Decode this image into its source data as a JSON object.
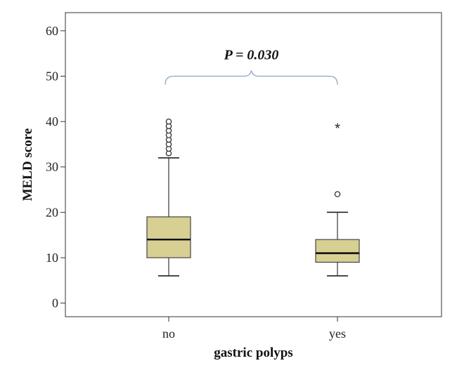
{
  "chart_data": {
    "type": "box",
    "xlabel": "gastric polyps",
    "ylabel": "MELD score",
    "ylim": [
      -3,
      64
    ],
    "yticks": [
      0,
      10,
      20,
      30,
      40,
      50,
      60
    ],
    "categories": [
      "no",
      "yes"
    ],
    "boxes": [
      {
        "category": "no",
        "whisker_low": 6,
        "q1": 10,
        "median": 14,
        "q3": 19,
        "whisker_high": 32,
        "outliers": [
          33,
          34,
          35,
          36,
          37,
          38,
          39,
          40
        ],
        "extremes": []
      },
      {
        "category": "yes",
        "whisker_low": 6,
        "q1": 9,
        "median": 11,
        "q3": 14,
        "whisker_high": 20,
        "outliers": [
          24
        ],
        "extremes": [
          39
        ]
      }
    ],
    "annotation": {
      "text": "P = 0.030",
      "between": [
        "no",
        "yes"
      ],
      "y": 50
    },
    "colors": {
      "box_fill": "#d8cf93",
      "box_stroke": "#444444",
      "median": "#111111",
      "bracket": "#8fa3c8"
    }
  }
}
